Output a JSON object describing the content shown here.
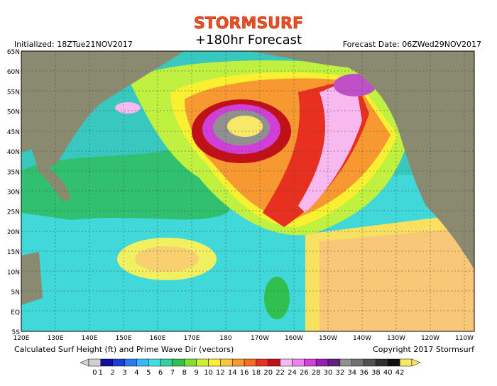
{
  "header": {
    "logo": "STORMSURF",
    "title": "+180hr Forecast",
    "initialized": "Initialized:  18ZTue21NOV2017",
    "forecast_date": "Forecast Date: 06ZWed29NOV2017"
  },
  "map": {
    "lat_labels": [
      "65N",
      "60N",
      "55N",
      "50N",
      "45N",
      "40N",
      "35N",
      "30N",
      "25N",
      "20N",
      "15N",
      "10N",
      "5N",
      "EQ",
      "5S"
    ],
    "lon_labels": [
      "120E",
      "130E",
      "140E",
      "150E",
      "160E",
      "170E",
      "180",
      "170W",
      "160W",
      "150W",
      "140W",
      "130W",
      "120W",
      "110W"
    ]
  },
  "footer": {
    "caption": "Calculated Surf Height (ft) and Prime Wave Dir (vectors)",
    "copyright": "Copyright 2017 Stormsurf"
  },
  "colorbar": {
    "values": [
      0,
      1,
      2,
      3,
      4,
      5,
      6,
      7,
      8,
      9,
      10,
      12,
      14,
      16,
      18,
      20,
      22,
      24,
      26,
      28,
      30,
      32,
      34,
      36,
      38,
      40,
      42
    ],
    "colors": [
      "#d0d0d0",
      "#1010a0",
      "#1c3cd8",
      "#2a78f0",
      "#38b8f8",
      "#40e0e0",
      "#30d0a0",
      "#30c050",
      "#80e030",
      "#d0f030",
      "#f8f030",
      "#f8c838",
      "#f89830",
      "#f86a28",
      "#e83020",
      "#c01018",
      "#f8b8f0",
      "#f080f0",
      "#d040d8",
      "#9820b0",
      "#602080",
      "#909090",
      "#707070",
      "#505050",
      "#303030",
      "#101010",
      "#f8e868"
    ]
  }
}
